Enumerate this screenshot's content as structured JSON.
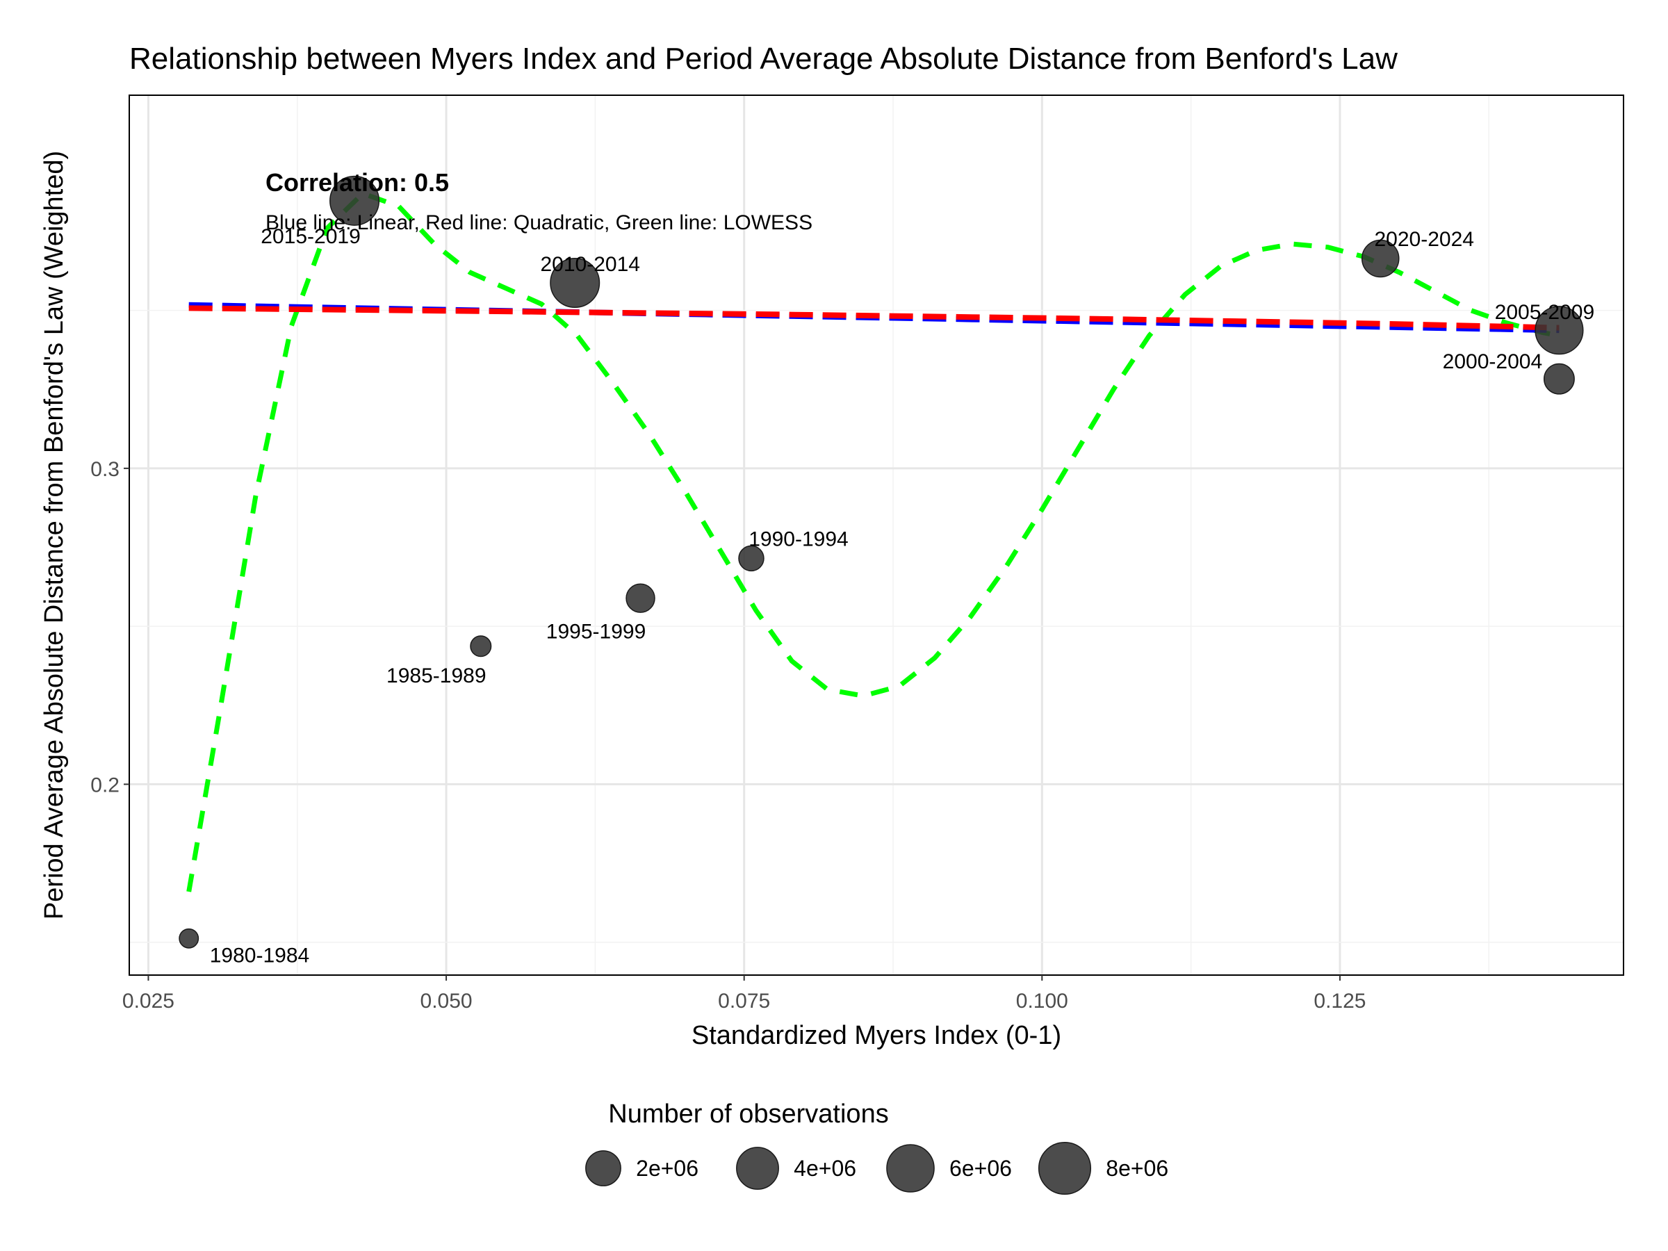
{
  "chart_data": {
    "type": "scatter",
    "title": "Relationship between Myers Index and Period Average Absolute Distance from Benford's Law",
    "xlabel": "Standardized Myers Index (0-1)",
    "ylabel": "Period Average Absolute Distance from Benford's Law (Weighted)",
    "xlim": [
      0.0234,
      0.1488
    ],
    "ylim": [
      0.1396,
      0.4181
    ],
    "x_ticks": [
      0.025,
      0.05,
      0.075,
      0.1,
      0.125
    ],
    "x_tick_labels": [
      "0.025",
      "0.050",
      "0.075",
      "0.100",
      "0.125"
    ],
    "y_ticks": [
      0.2,
      0.3
    ],
    "y_tick_labels": [
      "0.2",
      "0.3"
    ],
    "grid": true,
    "points": [
      {
        "label": "1980-1984",
        "x": 0.0284,
        "y": 0.1512,
        "n": 150000
      },
      {
        "label": "1985-1989",
        "x": 0.0529,
        "y": 0.2437,
        "n": 250000
      },
      {
        "label": "1990-1994",
        "x": 0.0756,
        "y": 0.2715,
        "n": 700000
      },
      {
        "label": "1995-1999",
        "x": 0.0663,
        "y": 0.2589,
        "n": 1200000
      },
      {
        "label": "2000-2004",
        "x": 0.1434,
        "y": 0.3283,
        "n": 1500000
      },
      {
        "label": "2005-2009",
        "x": 0.1434,
        "y": 0.3437,
        "n": 6500000
      },
      {
        "label": "2010-2014",
        "x": 0.0608,
        "y": 0.3587,
        "n": 7000000
      },
      {
        "label": "2015-2019",
        "x": 0.0423,
        "y": 0.3847,
        "n": 7000000
      },
      {
        "label": "2020-2024",
        "x": 0.1284,
        "y": 0.3664,
        "n": 3000000
      }
    ],
    "lines": [
      {
        "name": "Linear",
        "color": "#0000FF",
        "x": [
          0.0284,
          0.1434
        ],
        "y": [
          0.3517,
          0.3437
        ]
      },
      {
        "name": "Quadratic",
        "color": "#FF0000",
        "x": [
          0.0284,
          0.0534,
          0.0784,
          0.1034,
          0.1284,
          0.1434
        ],
        "y": [
          0.3507,
          0.3497,
          0.3487,
          0.3474,
          0.3458,
          0.3445
        ]
      },
      {
        "name": "LOWESS",
        "color": "#00FF00",
        "x": [
          0.0284,
          0.031,
          0.034,
          0.037,
          0.04,
          0.043,
          0.046,
          0.049,
          0.052,
          0.055,
          0.058,
          0.061,
          0.064,
          0.067,
          0.07,
          0.073,
          0.076,
          0.079,
          0.082,
          0.085,
          0.088,
          0.091,
          0.094,
          0.097,
          0.1,
          0.103,
          0.106,
          0.109,
          0.112,
          0.115,
          0.118,
          0.121,
          0.124,
          0.127,
          0.13,
          0.133,
          0.136,
          0.139,
          0.142,
          0.1434
        ],
        "y": [
          0.166,
          0.223,
          0.291,
          0.345,
          0.376,
          0.387,
          0.383,
          0.371,
          0.362,
          0.357,
          0.352,
          0.342,
          0.327,
          0.311,
          0.293,
          0.274,
          0.255,
          0.239,
          0.23,
          0.228,
          0.231,
          0.24,
          0.253,
          0.269,
          0.287,
          0.306,
          0.325,
          0.342,
          0.355,
          0.364,
          0.369,
          0.371,
          0.37,
          0.367,
          0.362,
          0.356,
          0.35,
          0.346,
          0.343,
          0.342
        ]
      }
    ],
    "annotations": {
      "correlation": "Correlation: 0.5",
      "lines_note": "Blue line: Linear, Red line: Quadratic, Green line: LOWESS"
    },
    "legend": {
      "title": "Number of observations",
      "placement": "bottom",
      "items": [
        {
          "label": "2e+06",
          "n": 2000000
        },
        {
          "label": "4e+06",
          "n": 4000000
        },
        {
          "label": "6e+06",
          "n": 6000000
        },
        {
          "label": "8e+06",
          "n": 8000000
        }
      ]
    }
  }
}
